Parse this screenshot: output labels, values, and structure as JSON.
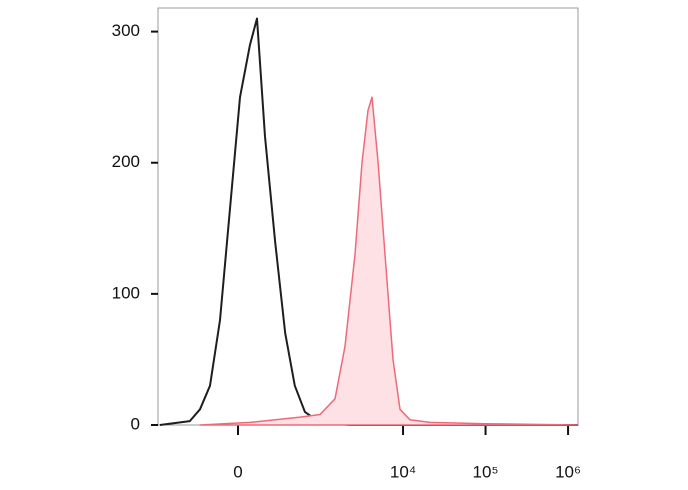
{
  "chart_data": {
    "type": "histogram-overlay",
    "xscale": "arcsinh",
    "xlim": [
      -922,
      1320000
    ],
    "ylim": [
      0,
      318
    ],
    "xticks": [
      0,
      {
        "value": 10000,
        "label": "10⁴"
      },
      {
        "value": 100000,
        "label": "10⁵"
      },
      {
        "value": 1000000,
        "label": "10⁶"
      }
    ],
    "yticks": [
      0,
      100,
      200,
      300
    ],
    "series": [
      {
        "color": "#1e1e1e",
        "fill": false,
        "x": [
          -872,
          -358,
          -254,
          -173,
          -105,
          -45,
          11,
          68,
          111,
          165,
          246,
          346,
          468,
          632,
          976,
          2274,
          1320000
        ],
        "values": [
          0,
          3,
          12,
          30,
          80,
          165,
          250,
          290,
          310,
          220,
          140,
          70,
          30,
          10,
          2,
          0,
          0
        ]
      },
      {
        "color": "#ee6a7a",
        "fill": true,
        "x": [
          -254,
          68,
          550,
          976,
          1492,
          1974,
          2614,
          3180,
          3760,
          4200,
          4980,
          6050,
          7560,
          9200,
          12140,
          21200,
          100000,
          1320000
        ],
        "values": [
          0,
          2,
          6,
          8,
          20,
          60,
          130,
          200,
          240,
          250,
          200,
          130,
          50,
          12,
          4,
          2,
          1,
          0
        ]
      }
    ]
  }
}
